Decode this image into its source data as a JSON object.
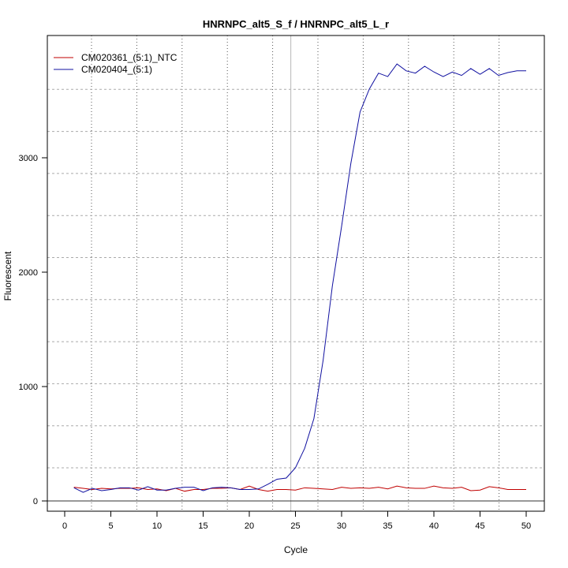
{
  "chart_data": {
    "type": "line",
    "title": "HNRNPC_alt5_S_f / HNRNPC_alt5_L_r",
    "xlabel": "Cycle",
    "ylabel": "Fluorescent",
    "xlim": [
      -2,
      52
    ],
    "ylim": [
      -80,
      4100
    ],
    "x_ticks": [
      0,
      5,
      10,
      15,
      20,
      25,
      30,
      35,
      40,
      45,
      50
    ],
    "y_ticks": [
      0,
      1000,
      2000,
      3000
    ],
    "grid": true,
    "legend_position": "top-left",
    "threshold_line_y": 0,
    "vertical_marker_x": 24.5,
    "x": [
      1,
      2,
      3,
      4,
      5,
      6,
      7,
      8,
      9,
      10,
      11,
      12,
      13,
      14,
      15,
      16,
      17,
      18,
      19,
      20,
      21,
      22,
      23,
      24,
      25,
      26,
      27,
      28,
      29,
      30,
      31,
      32,
      33,
      34,
      35,
      36,
      37,
      38,
      39,
      40,
      41,
      42,
      43,
      44,
      45,
      46,
      47,
      48,
      49,
      50
    ],
    "series": [
      {
        "name": "CM020361_(5:1)_NTC",
        "color": "#c00000",
        "values": [
          120,
          110,
          100,
          110,
          105,
          110,
          110,
          115,
          100,
          105,
          90,
          110,
          85,
          100,
          100,
          110,
          110,
          115,
          100,
          130,
          100,
          85,
          100,
          100,
          95,
          115,
          110,
          105,
          100,
          120,
          110,
          115,
          110,
          120,
          105,
          130,
          115,
          110,
          110,
          130,
          115,
          110,
          120,
          90,
          95,
          125,
          115,
          100,
          100,
          100
        ]
      },
      {
        "name": "CM020404_(5:1)",
        "color": "#1010a0",
        "values": [
          115,
          75,
          110,
          90,
          100,
          115,
          115,
          95,
          125,
          95,
          95,
          110,
          120,
          120,
          90,
          115,
          120,
          115,
          100,
          100,
          105,
          145,
          190,
          200,
          290,
          460,
          720,
          1230,
          1880,
          2400,
          2950,
          3400,
          3600,
          3740,
          3710,
          3820,
          3760,
          3740,
          3800,
          3750,
          3710,
          3750,
          3720,
          3780,
          3730,
          3780,
          3720,
          3745,
          3760,
          3760
        ]
      }
    ]
  }
}
